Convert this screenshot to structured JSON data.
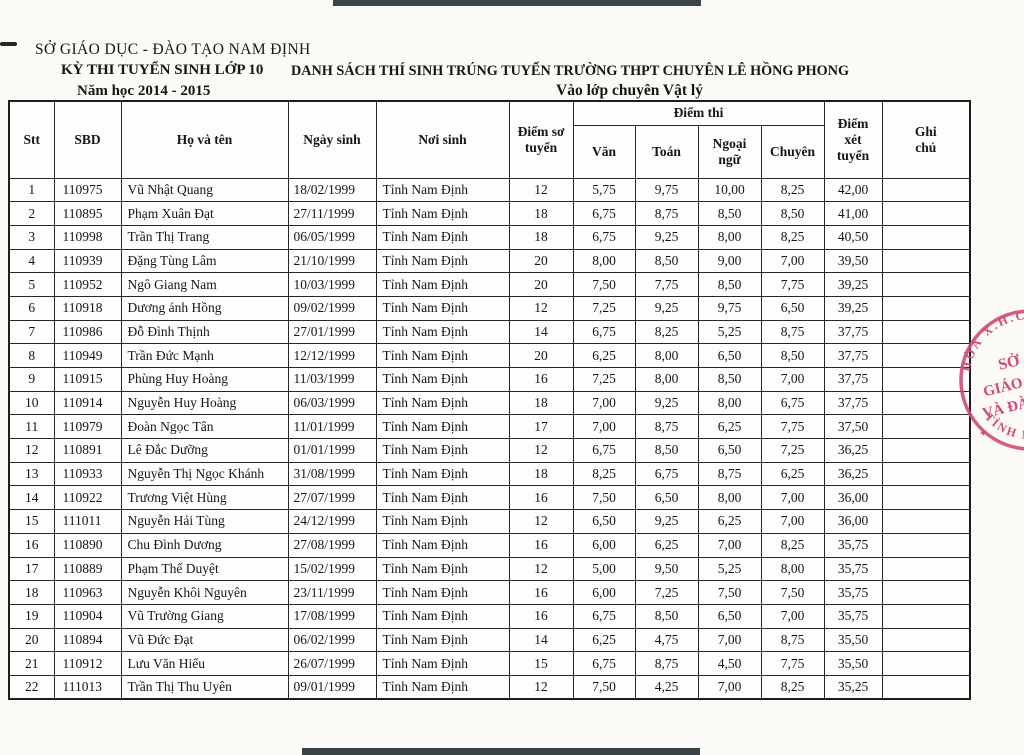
{
  "document": {
    "agency": "SỞ GIÁO DỤC - ĐÀO TẠO NAM ĐỊNH",
    "exam_title": "KỲ THI TUYỂN SINH LỚP 10",
    "list_title": "DANH SÁCH THÍ SINH TRÚNG TUYỂN TRƯỜNG THPT CHUYÊN LÊ HỒNG PHONG",
    "school_year": "Năm học 2014 - 2015",
    "class_title": "Vào lớp chuyên Vật lý"
  },
  "table": {
    "headers": {
      "stt": "Stt",
      "sbd": "SBD",
      "name": "Họ và tên",
      "dob": "Ngày sinh",
      "pob": "Nơi sinh",
      "so_tuyen": "Điểm sơ tuyển",
      "diem_thi": "Điểm thi",
      "van": "Văn",
      "toan": "Toán",
      "ngoai_ngu": "Ngoại ngữ",
      "chuyen": "Chuyên",
      "xet_tuyen": "Điểm xét tuyển",
      "ghi_chu": "Ghi chú"
    },
    "rows": [
      [
        "1",
        "110975",
        "Vũ Nhật Quang",
        "18/02/1999",
        "Tỉnh Nam Định",
        "12",
        "5,75",
        "9,75",
        "10,00",
        "8,25",
        "42,00",
        ""
      ],
      [
        "2",
        "110895",
        "Phạm Xuân Đạt",
        "27/11/1999",
        "Tỉnh Nam Định",
        "18",
        "6,75",
        "8,75",
        "8,50",
        "8,50",
        "41,00",
        ""
      ],
      [
        "3",
        "110998",
        "Trần Thị Trang",
        "06/05/1999",
        "Tỉnh Nam Định",
        "18",
        "6,75",
        "9,25",
        "8,00",
        "8,25",
        "40,50",
        ""
      ],
      [
        "4",
        "110939",
        "Đặng Tùng Lâm",
        "21/10/1999",
        "Tỉnh Nam Định",
        "20",
        "8,00",
        "8,50",
        "9,00",
        "7,00",
        "39,50",
        ""
      ],
      [
        "5",
        "110952",
        "Ngô Giang Nam",
        "10/03/1999",
        "Tỉnh Nam Định",
        "20",
        "7,50",
        "7,75",
        "8,50",
        "7,75",
        "39,25",
        ""
      ],
      [
        "6",
        "110918",
        "Dương ánh Hồng",
        "09/02/1999",
        "Tỉnh Nam Định",
        "12",
        "7,25",
        "9,25",
        "9,75",
        "6,50",
        "39,25",
        ""
      ],
      [
        "7",
        "110986",
        "Đỗ Đình Thịnh",
        "27/01/1999",
        "Tỉnh Nam Định",
        "14",
        "6,75",
        "8,25",
        "5,25",
        "8,75",
        "37,75",
        ""
      ],
      [
        "8",
        "110949",
        "Trần Đức Mạnh",
        "12/12/1999",
        "Tỉnh Nam Định",
        "20",
        "6,25",
        "8,00",
        "6,50",
        "8,50",
        "37,75",
        ""
      ],
      [
        "9",
        "110915",
        "Phùng Huy Hoàng",
        "11/03/1999",
        "Tỉnh Nam Định",
        "16",
        "7,25",
        "8,00",
        "8,50",
        "7,00",
        "37,75",
        ""
      ],
      [
        "10",
        "110914",
        "Nguyễn Huy Hoàng",
        "06/03/1999",
        "Tỉnh Nam Định",
        "18",
        "7,00",
        "9,25",
        "8,00",
        "6,75",
        "37,75",
        ""
      ],
      [
        "11",
        "110979",
        "Đoàn Ngọc Tân",
        "11/01/1999",
        "Tỉnh Nam Định",
        "17",
        "7,00",
        "8,75",
        "6,25",
        "7,75",
        "37,50",
        ""
      ],
      [
        "12",
        "110891",
        "Lê Đắc Dưỡng",
        "01/01/1999",
        "Tỉnh Nam Định",
        "12",
        "6,75",
        "8,50",
        "6,50",
        "7,25",
        "36,25",
        ""
      ],
      [
        "13",
        "110933",
        "Nguyễn Thị Ngọc Khánh",
        "31/08/1999",
        "Tỉnh Nam Định",
        "18",
        "8,25",
        "6,75",
        "8,75",
        "6,25",
        "36,25",
        ""
      ],
      [
        "14",
        "110922",
        "Trương Việt Hùng",
        "27/07/1999",
        "Tỉnh Nam Định",
        "16",
        "7,50",
        "6,50",
        "8,00",
        "7,00",
        "36,00",
        ""
      ],
      [
        "15",
        "111011",
        "Nguyễn Hải Tùng",
        "24/12/1999",
        "Tỉnh Nam Định",
        "12",
        "6,50",
        "9,25",
        "6,25",
        "7,00",
        "36,00",
        ""
      ],
      [
        "16",
        "110890",
        "Chu Đình Dương",
        "27/08/1999",
        "Tỉnh Nam Định",
        "16",
        "6,00",
        "6,25",
        "7,00",
        "8,25",
        "35,75",
        ""
      ],
      [
        "17",
        "110889",
        "Phạm Thế Duyệt",
        "15/02/1999",
        "Tỉnh Nam Định",
        "12",
        "5,00",
        "9,50",
        "5,25",
        "8,00",
        "35,75",
        ""
      ],
      [
        "18",
        "110963",
        "Nguyễn Khôi Nguyên",
        "23/11/1999",
        "Tỉnh Nam Định",
        "16",
        "6,00",
        "7,25",
        "7,50",
        "7,50",
        "35,75",
        ""
      ],
      [
        "19",
        "110904",
        "Vũ Trường Giang",
        "17/08/1999",
        "Tỉnh Nam Định",
        "16",
        "6,75",
        "8,50",
        "6,50",
        "7,00",
        "35,75",
        ""
      ],
      [
        "20",
        "110894",
        "Vũ Đức Đạt",
        "06/02/1999",
        "Tỉnh Nam Định",
        "14",
        "6,25",
        "4,75",
        "7,00",
        "8,75",
        "35,50",
        ""
      ],
      [
        "21",
        "110912",
        "Lưu Văn Hiểu",
        "26/07/1999",
        "Tỉnh Nam Định",
        "15",
        "6,75",
        "8,75",
        "4,50",
        "7,75",
        "35,50",
        ""
      ],
      [
        "22",
        "111013",
        "Trần Thị Thu Uyên",
        "09/01/1999",
        "Tỉnh Nam Định",
        "12",
        "7,50",
        "4,25",
        "7,00",
        "8,25",
        "35,25",
        ""
      ]
    ]
  },
  "stamp": {
    "color": "#cf4a78",
    "arc_top": "HÒA X.H.C",
    "arc_bottom": "TỈNH NA",
    "line1": "SỞ",
    "line2": "GIÁO D",
    "line3": "VÀ ĐÀO",
    "star": "✦"
  },
  "artifacts": {
    "bar_color": "#3a4447"
  }
}
